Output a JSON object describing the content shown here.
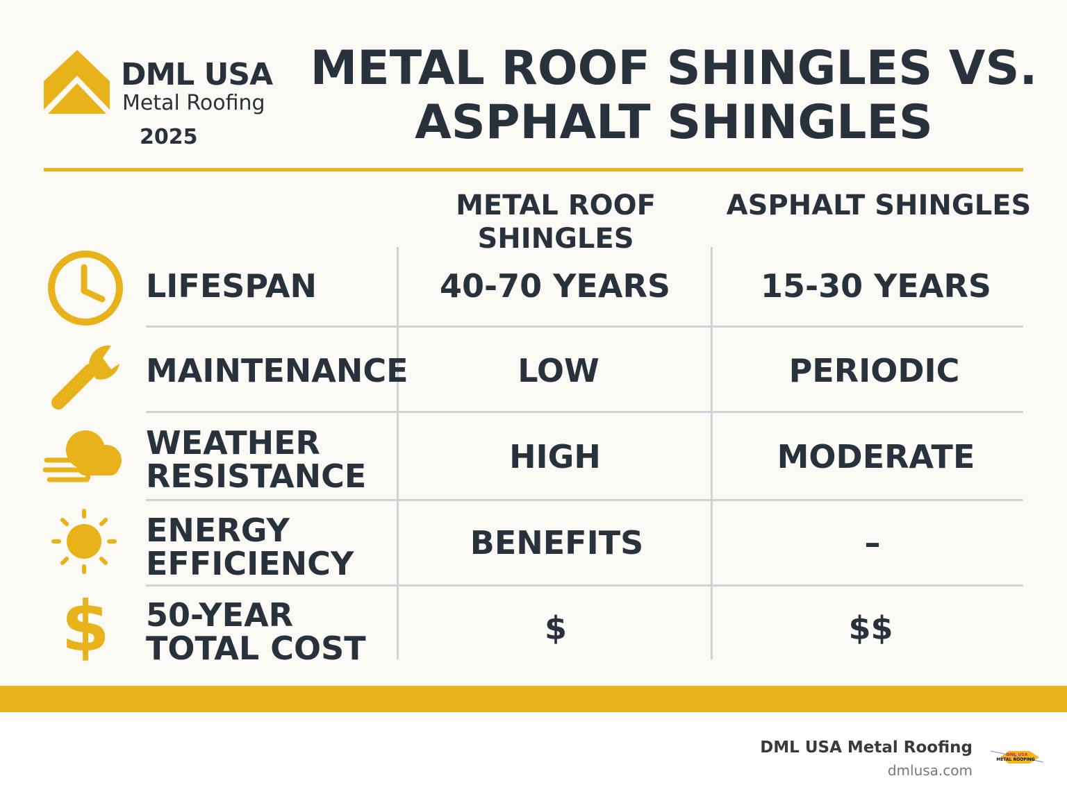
{
  "brand": {
    "name": "DML USA",
    "subtitle": "Metal Roofing",
    "year": "2025",
    "color": "#e8b21b"
  },
  "title": {
    "line1": "METAL ROOF SHINGLES VS.",
    "line2": "ASPHALT SHINGLES"
  },
  "table": {
    "columns": [
      "METAL ROOF SHINGLES",
      "ASPHALT SHINGLES"
    ],
    "rows": [
      {
        "icon": "clock-icon",
        "label": "LIFESPAN",
        "metal": "40-70 YEARS",
        "asphalt": "15-30 YEARS"
      },
      {
        "icon": "wrench-icon",
        "label": "MAINTENANCE",
        "metal": "LOW",
        "asphalt": "PERIODIC"
      },
      {
        "icon": "wind-cloud-icon",
        "label": "WEATHER RESISTANCE",
        "metal": "HIGH",
        "asphalt": "MODERATE"
      },
      {
        "icon": "sun-icon",
        "label": "ENERGY EFFICIENCY",
        "metal": "BENEFITS",
        "asphalt": "–"
      },
      {
        "icon": "dollar-icon",
        "label": "50-YEAR TOTAL COST",
        "metal": "$",
        "asphalt": "$$"
      }
    ]
  },
  "footer": {
    "company": "DML USA Metal Roofing",
    "url": "dmlusa.com",
    "logo_text": "DML USA METAL ROOFING"
  }
}
